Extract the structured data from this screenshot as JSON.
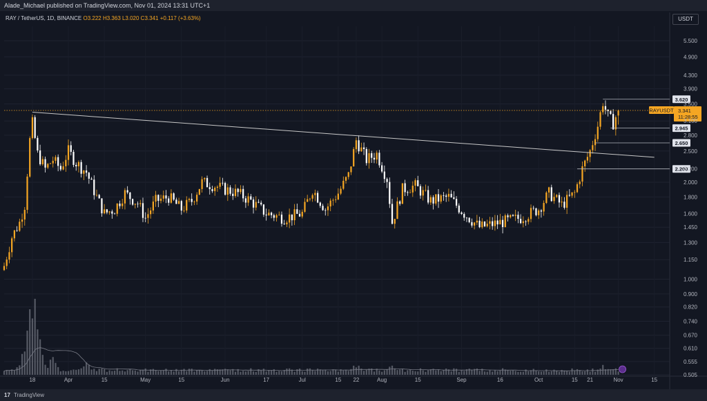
{
  "header": {
    "publisher_line": "Alade_Michael published on TradingView.com, Nov 01, 2024 13:31 UTC+1",
    "symbol_line": "RAY / TetherUS, 1D, BINANCE",
    "ohlc": "O3.222  H3.363  L3.020  C3.341",
    "change": "+0.117 (+3.63%)",
    "currency_button": "USDT"
  },
  "footer": {
    "brand": "TradingView",
    "logo": "17"
  },
  "colors": {
    "background": "#131722",
    "up": "#f5a623",
    "down": "#ffffff",
    "trendline": "#c8c8c8",
    "price_tag": "#f5a623"
  },
  "chart_data": {
    "type": "candlestick",
    "title": "RAY / TetherUS, 1D, BINANCE",
    "y_scale": "log",
    "ylim": [
      0.505,
      6.1
    ],
    "y_ticks": [
      5.5,
      4.9,
      4.3,
      3.9,
      3.5,
      3.1,
      2.8,
      2.5,
      2.2,
      2.0,
      1.8,
      1.6,
      1.45,
      1.3,
      1.15,
      1.0,
      0.9,
      0.82,
      0.74,
      0.67,
      0.61,
      0.555,
      0.505
    ],
    "y_tick_labels": [
      "5.500",
      "4.900",
      "4.300",
      "3.900",
      "3.500",
      "3.100",
      "2.800",
      "2.500",
      "2.200",
      "2.000",
      "1.800",
      "1.600",
      "1.450",
      "1.300",
      "1.150",
      "1.000",
      "0.900",
      "0.820",
      "0.740",
      "0.670",
      "0.610",
      "0.555",
      "0.505"
    ],
    "x_range": [
      "2024-03-07",
      "2024-11-21"
    ],
    "x_ticks": [
      {
        "date": "2024-03-18",
        "label": "18"
      },
      {
        "date": "2024-04-01",
        "label": "Apr"
      },
      {
        "date": "2024-04-15",
        "label": "15"
      },
      {
        "date": "2024-05-01",
        "label": "May"
      },
      {
        "date": "2024-05-15",
        "label": "15"
      },
      {
        "date": "2024-06-01",
        "label": "Jun"
      },
      {
        "date": "2024-06-17",
        "label": "17"
      },
      {
        "date": "2024-07-01",
        "label": "Jul"
      },
      {
        "date": "2024-07-15",
        "label": "15"
      },
      {
        "date": "2024-07-22",
        "label": "22"
      },
      {
        "date": "2024-08-01",
        "label": "Aug"
      },
      {
        "date": "2024-08-15",
        "label": "15"
      },
      {
        "date": "2024-09-01",
        "label": "Sep"
      },
      {
        "date": "2024-09-16",
        "label": "16"
      },
      {
        "date": "2024-10-01",
        "label": "Oct"
      },
      {
        "date": "2024-10-15",
        "label": "15"
      },
      {
        "date": "2024-10-21",
        "label": "21"
      },
      {
        "date": "2024-11-01",
        "label": "Nov"
      },
      {
        "date": "2024-11-15",
        "label": "15"
      }
    ],
    "close_path": [
      {
        "date": "2024-03-07",
        "close": 1.1
      },
      {
        "date": "2024-03-10",
        "close": 1.35
      },
      {
        "date": "2024-03-13",
        "close": 1.5
      },
      {
        "date": "2024-03-15",
        "close": 1.7
      },
      {
        "date": "2024-03-17",
        "close": 2.7
      },
      {
        "date": "2024-03-18",
        "close": 3.05
      },
      {
        "date": "2024-03-20",
        "close": 2.45
      },
      {
        "date": "2024-03-23",
        "close": 2.2
      },
      {
        "date": "2024-03-26",
        "close": 2.35
      },
      {
        "date": "2024-03-29",
        "close": 2.2
      },
      {
        "date": "2024-04-01",
        "close": 2.5
      },
      {
        "date": "2024-04-04",
        "close": 2.3
      },
      {
        "date": "2024-04-08",
        "close": 2.15
      },
      {
        "date": "2024-04-12",
        "close": 1.8
      },
      {
        "date": "2024-04-15",
        "close": 1.6
      },
      {
        "date": "2024-04-19",
        "close": 1.65
      },
      {
        "date": "2024-04-23",
        "close": 1.85
      },
      {
        "date": "2024-04-28",
        "close": 1.72
      },
      {
        "date": "2024-05-01",
        "close": 1.55
      },
      {
        "date": "2024-05-05",
        "close": 1.75
      },
      {
        "date": "2024-05-10",
        "close": 1.8
      },
      {
        "date": "2024-05-15",
        "close": 1.65
      },
      {
        "date": "2024-05-19",
        "close": 1.75
      },
      {
        "date": "2024-05-23",
        "close": 2.0
      },
      {
        "date": "2024-05-28",
        "close": 1.95
      },
      {
        "date": "2024-06-01",
        "close": 1.9
      },
      {
        "date": "2024-06-06",
        "close": 1.85
      },
      {
        "date": "2024-06-11",
        "close": 1.75
      },
      {
        "date": "2024-06-17",
        "close": 1.6
      },
      {
        "date": "2024-06-24",
        "close": 1.55
      },
      {
        "date": "2024-07-01",
        "close": 1.6
      },
      {
        "date": "2024-07-05",
        "close": 1.9
      },
      {
        "date": "2024-07-10",
        "close": 1.65
      },
      {
        "date": "2024-07-15",
        "close": 1.85
      },
      {
        "date": "2024-07-19",
        "close": 2.1
      },
      {
        "date": "2024-07-22",
        "close": 2.7
      },
      {
        "date": "2024-07-26",
        "close": 2.35
      },
      {
        "date": "2024-07-30",
        "close": 2.45
      },
      {
        "date": "2024-08-03",
        "close": 2.05
      },
      {
        "date": "2024-08-05",
        "close": 1.5
      },
      {
        "date": "2024-08-09",
        "close": 1.9
      },
      {
        "date": "2024-08-14",
        "close": 1.95
      },
      {
        "date": "2024-08-20",
        "close": 1.75
      },
      {
        "date": "2024-08-27",
        "close": 1.8
      },
      {
        "date": "2024-09-02",
        "close": 1.6
      },
      {
        "date": "2024-09-08",
        "close": 1.45
      },
      {
        "date": "2024-09-16",
        "close": 1.5
      },
      {
        "date": "2024-09-24",
        "close": 1.55
      },
      {
        "date": "2024-10-01",
        "close": 1.65
      },
      {
        "date": "2024-10-05",
        "close": 1.85
      },
      {
        "date": "2024-10-10",
        "close": 1.7
      },
      {
        "date": "2024-10-15",
        "close": 1.85
      },
      {
        "date": "2024-10-18",
        "close": 2.2
      },
      {
        "date": "2024-10-21",
        "close": 2.5
      },
      {
        "date": "2024-10-24",
        "close": 3.0
      },
      {
        "date": "2024-10-26",
        "close": 3.55
      },
      {
        "date": "2024-10-28",
        "close": 3.2
      },
      {
        "date": "2024-10-30",
        "close": 3.05
      },
      {
        "date": "2024-11-01",
        "close": 3.341
      }
    ],
    "last_candle": {
      "open": 3.222,
      "high": 3.363,
      "low": 3.02,
      "close": 3.341
    },
    "trendline": [
      {
        "date": "2024-03-18",
        "price": 3.3
      },
      {
        "date": "2024-11-15",
        "price": 2.39
      }
    ],
    "horizontal_levels": [
      {
        "price": 3.62,
        "label": "3.620",
        "from": "2024-10-26"
      },
      {
        "price": 2.945,
        "label": "2.945",
        "from": "2024-10-29"
      },
      {
        "price": 2.65,
        "label": "2.650",
        "from": "2024-10-23"
      },
      {
        "price": 2.2,
        "label": "2.200",
        "from": "2024-10-16"
      }
    ],
    "current_price": {
      "symbol": "RAYUSDT",
      "price": "3.341",
      "countdown": "11:28:55",
      "value": 3.341
    },
    "volume": {
      "peaks": [
        {
          "date": "2024-03-13",
          "rel": 0.12
        },
        {
          "date": "2024-03-16",
          "rel": 0.45
        },
        {
          "date": "2024-03-18",
          "rel": 1.0
        },
        {
          "date": "2024-03-20",
          "rel": 0.5
        },
        {
          "date": "2024-03-26",
          "rel": 0.2
        },
        {
          "date": "2024-04-08",
          "rel": 0.15
        },
        {
          "date": "2024-07-22",
          "rel": 0.12
        },
        {
          "date": "2024-08-05",
          "rel": 0.12
        },
        {
          "date": "2024-10-26",
          "rel": 0.11
        },
        {
          "date": "2024-10-30",
          "rel": 0.09
        }
      ]
    }
  }
}
